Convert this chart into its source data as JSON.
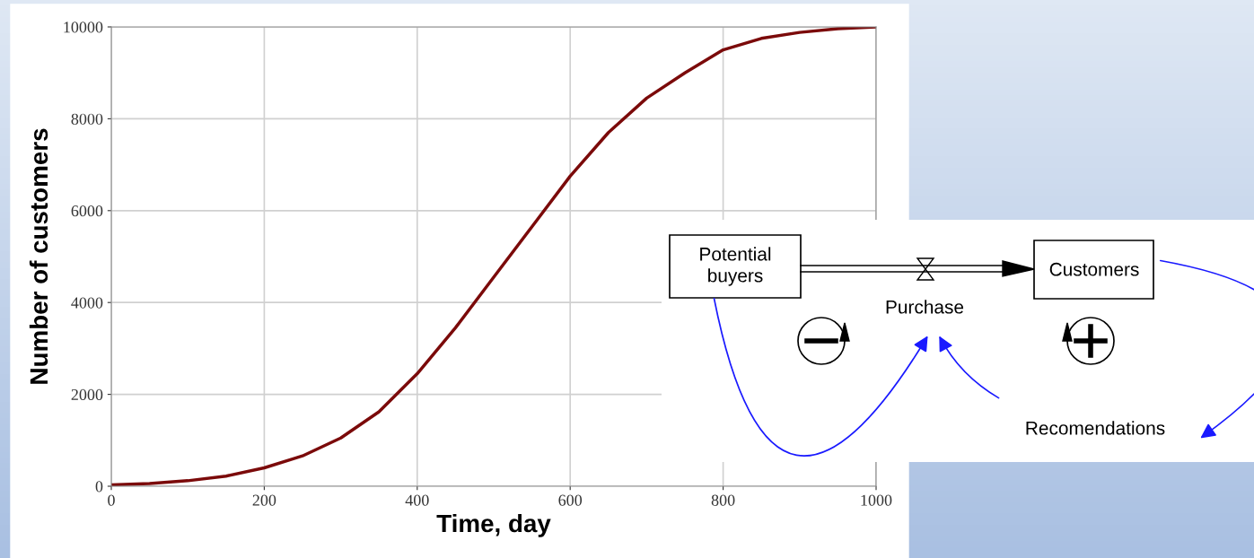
{
  "chart_data": {
    "type": "line",
    "xlabel": "Time, day",
    "ylabel": "Number of customers",
    "x": [
      0,
      50,
      100,
      150,
      200,
      250,
      300,
      350,
      400,
      450,
      500,
      550,
      600,
      650,
      700,
      750,
      800,
      850,
      900,
      950,
      1000
    ],
    "series": [
      {
        "color": "#7b0a0a",
        "values": [
          30,
          60,
          120,
          220,
          400,
          660,
          1050,
          1620,
          2450,
          3450,
          4550,
          5650,
          6750,
          7700,
          8450,
          9000,
          9500,
          9750,
          9880,
          9960,
          10000
        ]
      }
    ],
    "xlim": [
      0,
      1000
    ],
    "xticks": [
      0,
      200,
      400,
      600,
      800,
      1000
    ],
    "ylim": [
      0,
      10000
    ],
    "yticks": [
      0,
      2000,
      4000,
      6000,
      8000,
      10000
    ],
    "grid": true,
    "marker": "none",
    "line_style": "solid",
    "annotations": [
      "Potential buyers",
      "Purchase",
      "Customers",
      "Recomendations"
    ]
  }
}
